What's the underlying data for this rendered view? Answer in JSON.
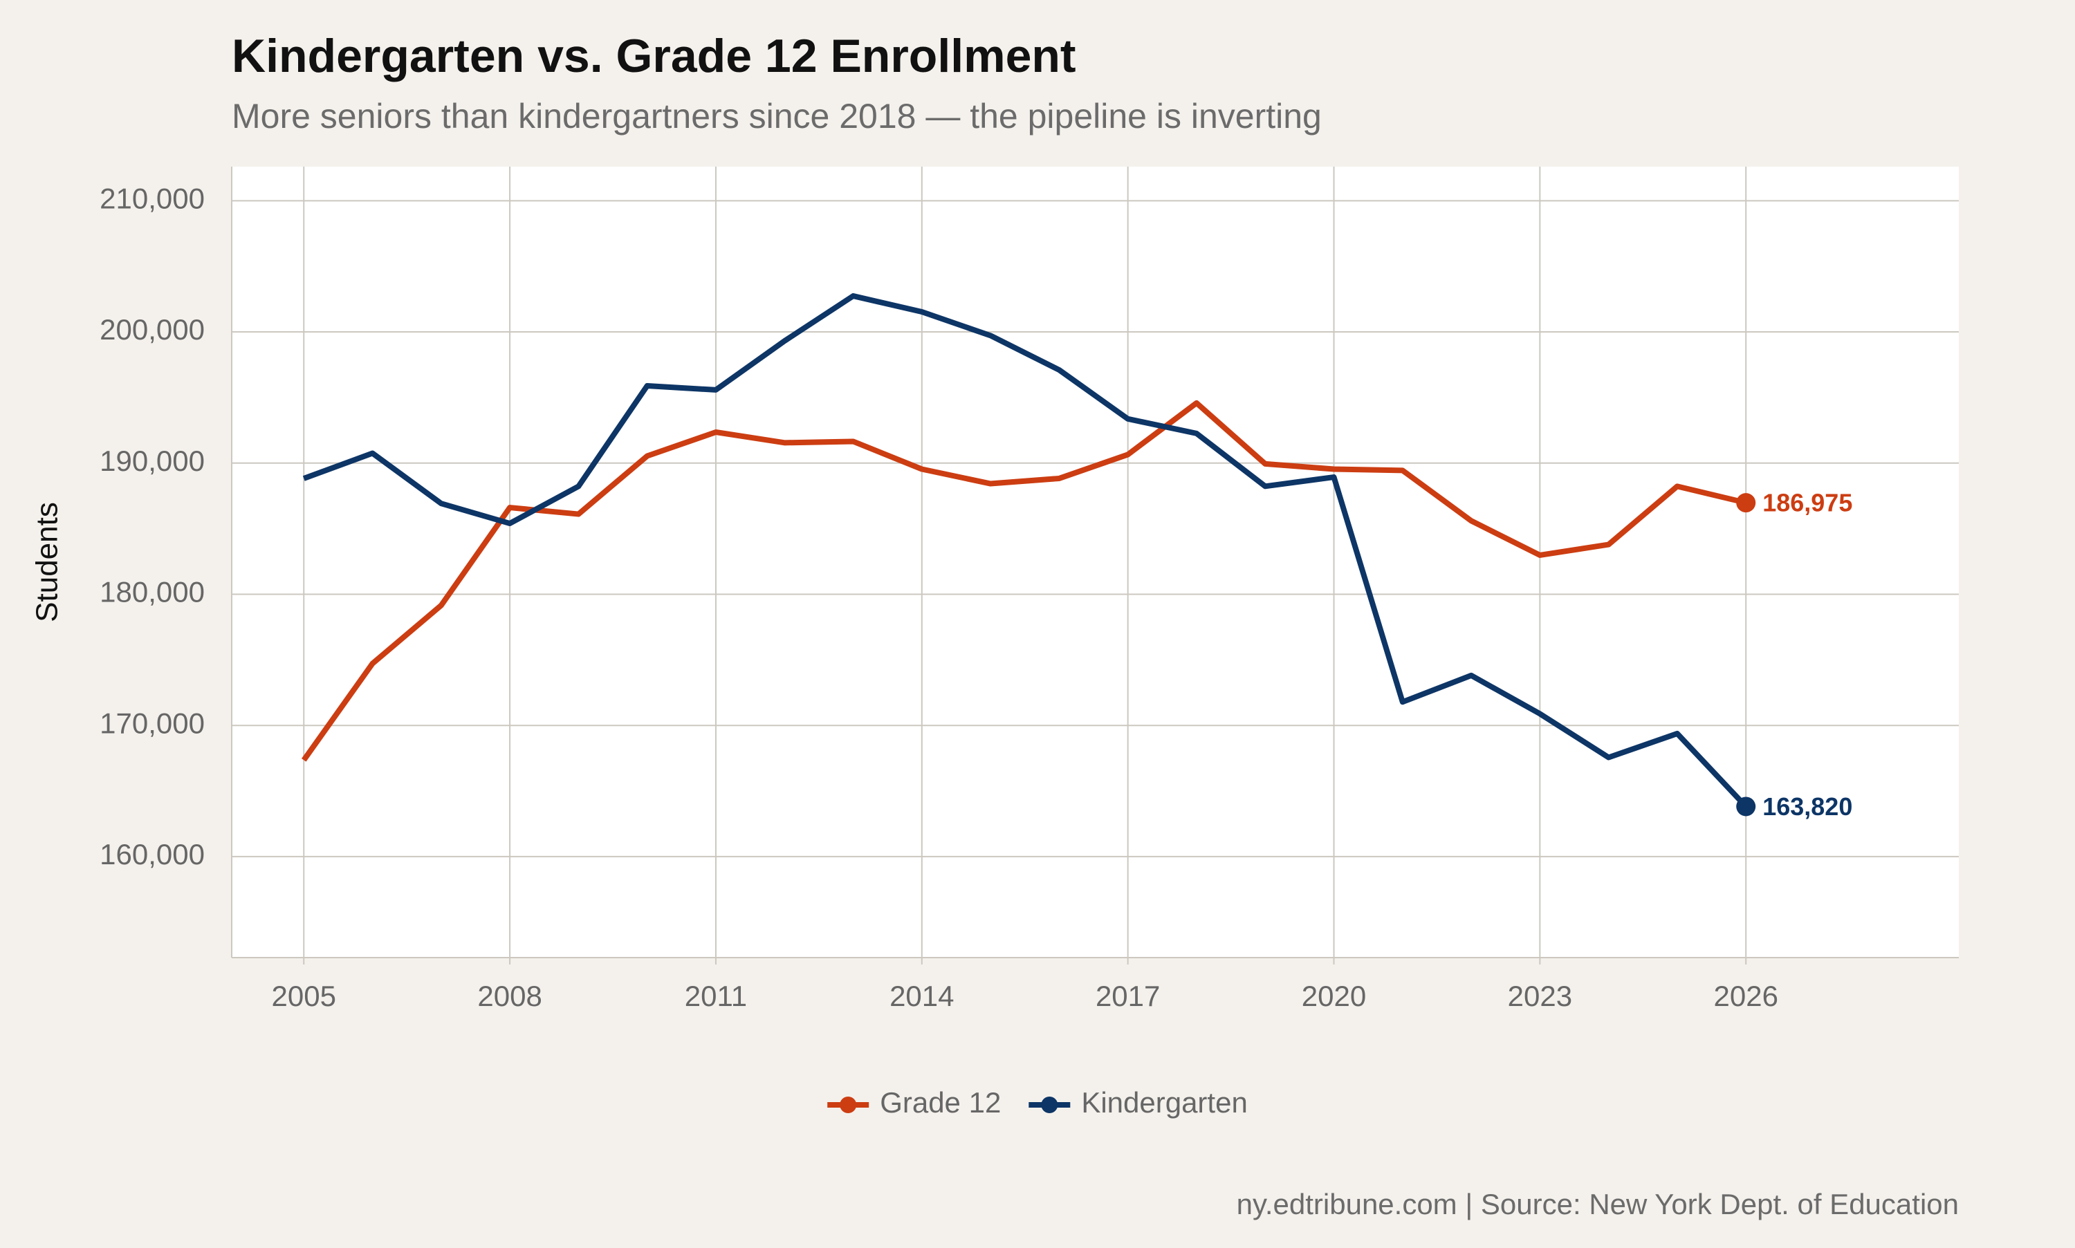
{
  "chart_data": {
    "type": "line",
    "title": "Kindergarten vs. Grade 12 Enrollment",
    "subtitle": "More seniors than kindergartners since 2018 — the pipeline is inverting",
    "y_label": "Students",
    "caption": "ny.edtribune.com | Source: New York Dept. of Education",
    "x": [
      2005,
      2006,
      2007,
      2008,
      2009,
      2010,
      2011,
      2012,
      2013,
      2014,
      2015,
      2016,
      2017,
      2018,
      2019,
      2020,
      2021,
      2022,
      2023,
      2024,
      2025,
      2026
    ],
    "series": [
      {
        "name": "Grade 12",
        "color": "#cc3d12",
        "values": [
          167360,
          174720,
          179150,
          186610,
          186110,
          190540,
          192360,
          191550,
          191650,
          189540,
          188430,
          188830,
          190650,
          194580,
          189940,
          189540,
          189440,
          185600,
          182980,
          183790,
          188230,
          186975
        ],
        "value_labels": [
          null,
          null,
          null,
          null,
          null,
          null,
          null,
          null,
          null,
          null,
          null,
          null,
          null,
          null,
          null,
          null,
          null,
          null,
          null,
          null,
          null,
          "186,975"
        ]
      },
      {
        "name": "Kindergarten",
        "color": "#0d3566",
        "values": [
          188830,
          190750,
          186920,
          185400,
          188230,
          195890,
          195580,
          199310,
          202740,
          201530,
          199720,
          197100,
          193370,
          192260,
          188230,
          188930,
          171790,
          173810,
          170890,
          167560,
          169380,
          163820
        ],
        "value_labels": [
          null,
          null,
          null,
          null,
          null,
          null,
          null,
          null,
          null,
          null,
          null,
          null,
          null,
          null,
          null,
          null,
          null,
          null,
          null,
          null,
          null,
          "163,820"
        ]
      }
    ],
    "xlim": [
      2003.95,
      2029.1
    ],
    "xticks": [
      2005,
      2008,
      2011,
      2014,
      2017,
      2020,
      2023,
      2026
    ],
    "ylim": [
      152300,
      212600
    ],
    "yticks": [
      {
        "value": 160000,
        "label": "160,000"
      },
      {
        "value": 170000,
        "label": "170,000"
      },
      {
        "value": 180000,
        "label": "180,000"
      },
      {
        "value": 190000,
        "label": "190,000"
      },
      {
        "value": 200000,
        "label": "200,000"
      },
      {
        "value": 210000,
        "label": "210,000"
      }
    ],
    "grid": true,
    "legend": "bottom"
  }
}
